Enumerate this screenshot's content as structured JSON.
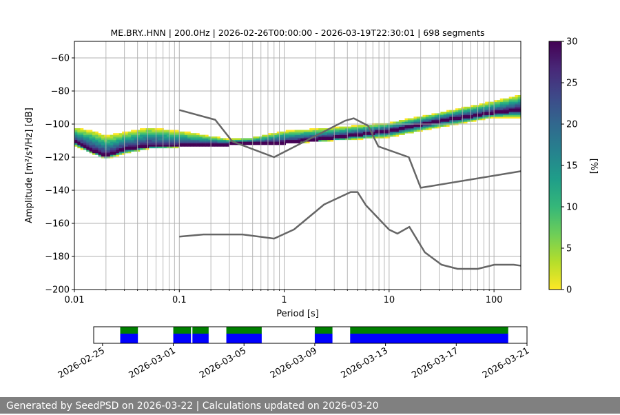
{
  "chart_data": {
    "type": "heatmap",
    "title": "ME.BRY..HNN | 200.0Hz | 2026-02-26T00:00:00 - 2026-03-19T22:30:01 | 698 segments",
    "xlabel": "Period [s]",
    "ylabel": "Amplitude [m²/s⁴/Hz] [dB]",
    "xscale": "log",
    "xlim": [
      0.01,
      180
    ],
    "ylim": [
      -200,
      -50
    ],
    "xticks": [
      {
        "value": 0.01,
        "label": "0.01"
      },
      {
        "value": 0.1,
        "label": "0.1"
      },
      {
        "value": 1,
        "label": "1"
      },
      {
        "value": 10,
        "label": "10"
      },
      {
        "value": 100,
        "label": "100"
      }
    ],
    "yticks": [
      {
        "value": -60,
        "label": "−60"
      },
      {
        "value": -80,
        "label": "−80"
      },
      {
        "value": -100,
        "label": "−100"
      },
      {
        "value": -120,
        "label": "−120"
      },
      {
        "value": -140,
        "label": "−140"
      },
      {
        "value": -160,
        "label": "−160"
      },
      {
        "value": -180,
        "label": "−180"
      },
      {
        "value": -200,
        "label": "−200"
      }
    ],
    "vertical_gridlines": [
      0.02,
      0.03,
      0.04,
      0.05,
      0.06,
      0.07,
      0.08,
      0.09,
      0.2,
      0.3,
      0.4,
      0.5,
      0.6,
      0.7,
      0.8,
      0.9,
      2,
      3,
      4,
      5,
      6,
      7,
      8,
      9,
      20,
      30,
      40,
      50,
      60,
      70,
      80,
      90,
      200
    ],
    "colorbar": {
      "label": "[%]",
      "range": [
        0,
        30
      ],
      "ticks": [
        {
          "value": 0,
          "label": "0"
        },
        {
          "value": 5,
          "label": "5"
        },
        {
          "value": 10,
          "label": "10"
        },
        {
          "value": 15,
          "label": "15"
        },
        {
          "value": 20,
          "label": "20"
        },
        {
          "value": 25,
          "label": "25"
        },
        {
          "value": 30,
          "label": "30"
        }
      ],
      "colors": [
        "#fde725",
        "#b5de2b",
        "#6ece58",
        "#35b779",
        "#1f9e89",
        "#26828e",
        "#31688e",
        "#3e4989",
        "#482878",
        "#440154"
      ]
    },
    "psd_mode_curve": [
      [
        0.01,
        -110
      ],
      [
        0.012,
        -113
      ],
      [
        0.015,
        -116
      ],
      [
        0.02,
        -119
      ],
      [
        0.03,
        -115
      ],
      [
        0.05,
        -113
      ],
      [
        0.1,
        -113
      ],
      [
        0.3,
        -112
      ],
      [
        1,
        -111
      ],
      [
        3,
        -108
      ],
      [
        10,
        -104
      ],
      [
        30,
        -98
      ],
      [
        100,
        -93
      ],
      [
        180,
        -91
      ]
    ],
    "psd_upper_curve": [
      [
        0.01,
        -102
      ],
      [
        0.015,
        -104
      ],
      [
        0.02,
        -107
      ],
      [
        0.05,
        -102
      ],
      [
        0.1,
        -104
      ],
      [
        0.3,
        -109
      ],
      [
        0.5,
        -108
      ],
      [
        1,
        -104
      ],
      [
        3,
        -102
      ],
      [
        10,
        -99
      ],
      [
        30,
        -93
      ],
      [
        100,
        -86
      ],
      [
        180,
        -82
      ]
    ],
    "psd_lower_curve": [
      [
        0.01,
        -113
      ],
      [
        0.015,
        -118
      ],
      [
        0.02,
        -121
      ],
      [
        0.03,
        -118
      ],
      [
        0.05,
        -115
      ],
      [
        0.1,
        -114
      ],
      [
        0.3,
        -113
      ],
      [
        1,
        -112
      ],
      [
        3,
        -110
      ],
      [
        10,
        -108
      ],
      [
        30,
        -102
      ],
      [
        100,
        -96
      ],
      [
        180,
        -96
      ]
    ],
    "nhnm": [
      [
        0.1,
        -91.5
      ],
      [
        0.22,
        -97.4
      ],
      [
        0.32,
        -110.5
      ],
      [
        0.8,
        -120
      ],
      [
        3.8,
        -98
      ],
      [
        4.6,
        -96.5
      ],
      [
        6.3,
        -101
      ],
      [
        7.9,
        -113.5
      ],
      [
        15.4,
        -120
      ],
      [
        20,
        -138.5
      ],
      [
        180,
        -128.5
      ]
    ],
    "nlnm": [
      [
        0.1,
        -168
      ],
      [
        0.17,
        -166.7
      ],
      [
        0.4,
        -166.7
      ],
      [
        0.8,
        -169.2
      ],
      [
        1.24,
        -163.7
      ],
      [
        2.4,
        -148.6
      ],
      [
        4.3,
        -141.1
      ],
      [
        5,
        -141.1
      ],
      [
        6,
        -149
      ],
      [
        10,
        -163.8
      ],
      [
        12,
        -166.2
      ],
      [
        15.6,
        -162.1
      ],
      [
        21.9,
        -177.5
      ],
      [
        31.6,
        -185
      ],
      [
        45,
        -187.5
      ],
      [
        70,
        -187.5
      ],
      [
        101,
        -185
      ],
      [
        154,
        -185
      ],
      [
        180,
        -185.6
      ]
    ],
    "timeline": {
      "ticks": [
        "2026-02-25",
        "2026-03-01",
        "2026-03-05",
        "2026-03-09",
        "2026-03-13",
        "2026-03-17",
        "2026-03-21"
      ],
      "data_colors": {
        "available": "#0000ff",
        "processed": "#008000"
      },
      "availability_segments": [
        {
          "start": "2026-02-26T00:00",
          "end": "2026-02-27T00:00"
        },
        {
          "start": "2026-03-01T00:00",
          "end": "2026-03-02T00:00"
        },
        {
          "start": "2026-03-02T02:00",
          "end": "2026-03-03T00:00"
        },
        {
          "start": "2026-03-04T00:00",
          "end": "2026-03-06T00:00"
        },
        {
          "start": "2026-03-09T00:00",
          "end": "2026-03-10T00:00"
        },
        {
          "start": "2026-03-11T00:00",
          "end": "2026-03-19T22:30"
        }
      ]
    }
  },
  "footer": {
    "text": "Generated by SeedPSD on 2026-03-22 | Calculations updated on 2026-03-20"
  }
}
